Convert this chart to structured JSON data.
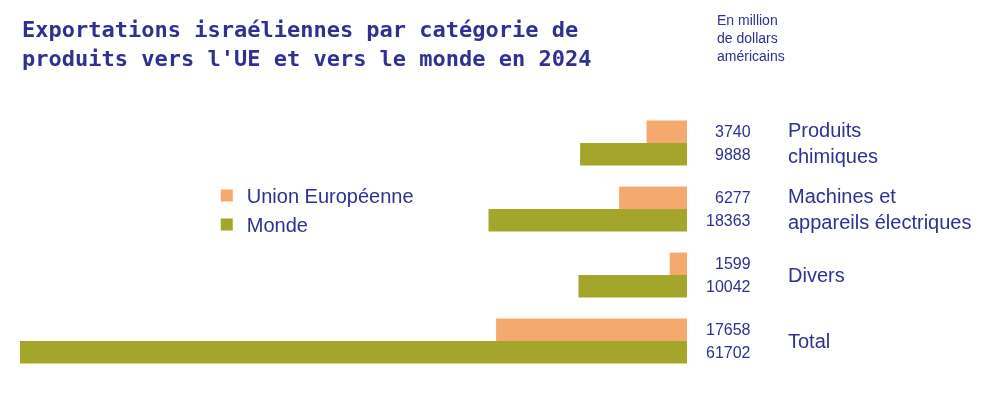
{
  "chart_data": {
    "type": "bar",
    "orientation": "horizontal",
    "title": "Exportations israéliennes par catégorie de produits vers l'UE et vers le monde en 2024",
    "subtitle": "En million de dollars américains",
    "categories": [
      "Produits chimiques",
      "Machines et appareils électriques",
      "Divers",
      "Total"
    ],
    "series": [
      {
        "name": "Union Européenne",
        "color": "#f4a96e",
        "values": [
          3740,
          6277,
          1599,
          17658
        ]
      },
      {
        "name": "Monde",
        "color": "#a3a62a",
        "values": [
          9888,
          18363,
          10042,
          61702
        ]
      }
    ],
    "xlim": [
      61702,
      0
    ],
    "data_labels": true,
    "legend": "left",
    "tick_labels": "y"
  }
}
